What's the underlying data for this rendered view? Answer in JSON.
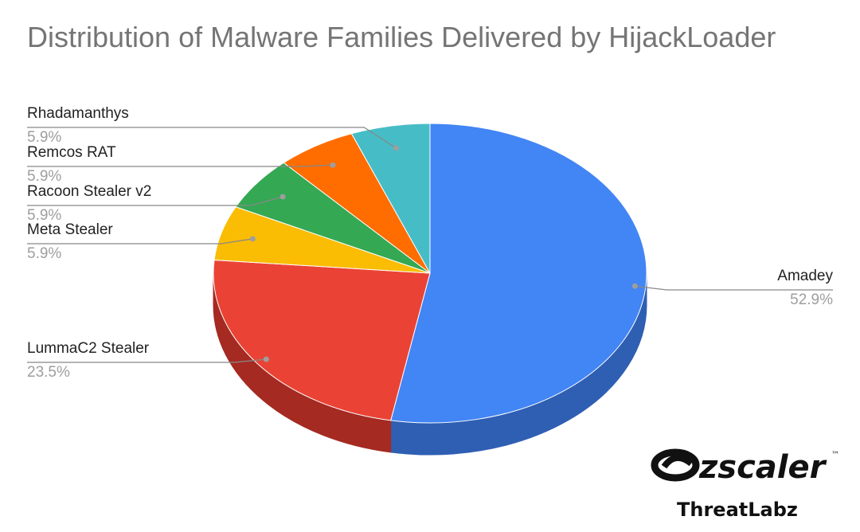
{
  "chart_data": {
    "type": "pie",
    "title": "Distribution of Malware Families Delivered by HijackLoader",
    "three_d": true,
    "legend": "labeled slices with leader lines",
    "slices": [
      {
        "label": "Amadey",
        "value": 52.9,
        "value_label": "52.9%",
        "color": "#4285f4",
        "side_color": "#2f5fb3"
      },
      {
        "label": "LummaC2 Stealer",
        "value": 23.5,
        "value_label": "23.5%",
        "color": "#ea4335",
        "side_color": "#a52a22"
      },
      {
        "label": "Meta Stealer",
        "value": 5.9,
        "value_label": "5.9%",
        "color": "#fbbc04",
        "side_color": "#b08403"
      },
      {
        "label": "Racoon Stealer v2",
        "value": 5.9,
        "value_label": "5.9%",
        "color": "#34a853",
        "side_color": "#23763a"
      },
      {
        "label": "Remcos RAT",
        "value": 5.9,
        "value_label": "5.9%",
        "color": "#ff6d01",
        "side_color": "#b34c00"
      },
      {
        "label": "Rhadamanthys",
        "value": 5.9,
        "value_label": "5.9%",
        "color": "#46bdc6",
        "side_color": "#30858b"
      }
    ]
  },
  "logo": {
    "wordmark": "zscaler",
    "tm": "™",
    "subtitle": "ThreatLabz"
  }
}
